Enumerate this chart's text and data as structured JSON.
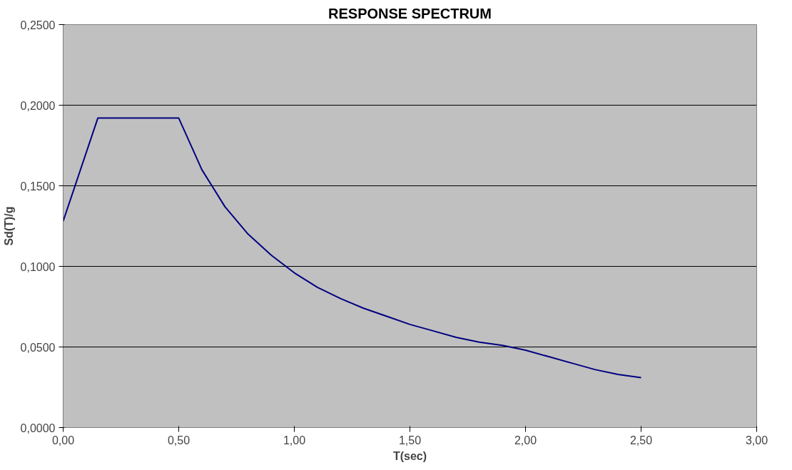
{
  "chart_data": {
    "type": "line",
    "title": "RESPONSE SPECTRUM",
    "xlabel": "T(sec)",
    "ylabel": "Sd(T)/g",
    "x": [
      0,
      0.15,
      0.5,
      0.6,
      0.7,
      0.8,
      0.9,
      1.0,
      1.1,
      1.2,
      1.3,
      1.4,
      1.5,
      1.6,
      1.7,
      1.8,
      1.9,
      2.0,
      2.1,
      2.2,
      2.3,
      2.4,
      2.5
    ],
    "series": [
      {
        "color": "#000080",
        "values": [
          0.128,
          0.192,
          0.192,
          0.16,
          0.137,
          0.12,
          0.107,
          0.096,
          0.087,
          0.08,
          0.074,
          0.069,
          0.064,
          0.06,
          0.056,
          0.053,
          0.051,
          0.048,
          0.044,
          0.04,
          0.036,
          0.033,
          0.031
        ]
      }
    ],
    "xlim": [
      0,
      3
    ],
    "ylim": [
      0,
      0.25
    ],
    "xticks": [
      {
        "value": 0,
        "label": "0,00"
      },
      {
        "value": 0.5,
        "label": "0,50"
      },
      {
        "value": 1,
        "label": "1,00"
      },
      {
        "value": 1.5,
        "label": "1,50"
      },
      {
        "value": 2,
        "label": "2,00"
      },
      {
        "value": 2.5,
        "label": "2,50"
      },
      {
        "value": 3,
        "label": "3,00"
      }
    ],
    "yticks": [
      {
        "value": 0,
        "label": "0,0000"
      },
      {
        "value": 0.05,
        "label": "0,0500"
      },
      {
        "value": 0.1,
        "label": "0,1000"
      },
      {
        "value": 0.15,
        "label": "0,1500"
      },
      {
        "value": 0.2,
        "label": "0,2000"
      },
      {
        "value": 0.25,
        "label": "0,2500"
      }
    ],
    "grid": "y",
    "marker": "none",
    "line_style": "solid"
  }
}
